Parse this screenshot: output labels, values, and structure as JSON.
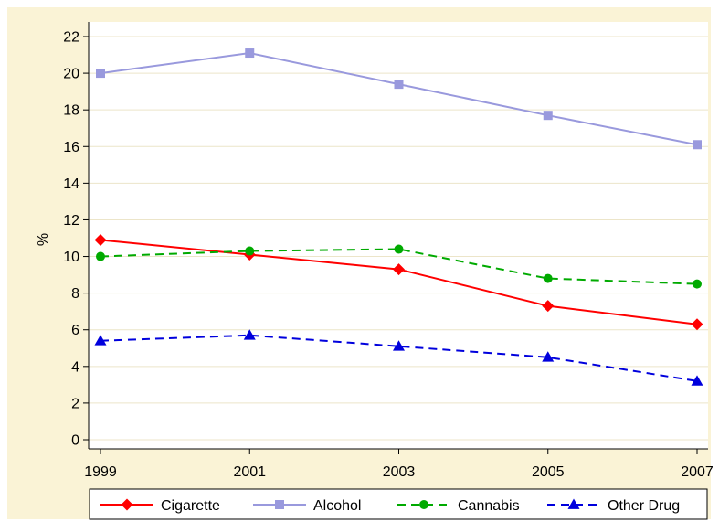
{
  "chart_data": {
    "type": "line",
    "title": "",
    "xlabel": "",
    "ylabel": "%",
    "x": [
      1999,
      2001,
      2003,
      2005,
      2007
    ],
    "xticks": [
      "1999",
      "2001",
      "2003",
      "2005",
      "2007"
    ],
    "yticks": [
      "0",
      "2",
      "4",
      "6",
      "8",
      "10",
      "12",
      "14",
      "16",
      "18",
      "20",
      "22"
    ],
    "ylim": [
      0,
      22
    ],
    "grid": true,
    "legend_position": "bottom",
    "colors": {
      "background_outer": "#faf3d6",
      "plot_background": "#ffffff",
      "grid": "#ece5c9"
    },
    "series": [
      {
        "name": "Cigarette",
        "values": [
          10.9,
          10.1,
          9.3,
          7.3,
          6.3
        ],
        "color": "#ff0000",
        "marker": "diamond",
        "dash": "solid"
      },
      {
        "name": "Alcohol",
        "values": [
          20.0,
          21.1,
          19.4,
          17.7,
          16.1
        ],
        "color": "#9999dd",
        "marker": "square",
        "dash": "solid"
      },
      {
        "name": "Cannabis",
        "values": [
          10.0,
          10.3,
          10.4,
          8.8,
          8.5
        ],
        "color": "#00aa00",
        "marker": "circle",
        "dash": "dashed"
      },
      {
        "name": "Other Drug",
        "values": [
          5.4,
          5.7,
          5.1,
          4.5,
          3.2
        ],
        "color": "#0000dd",
        "marker": "triangle",
        "dash": "dashed"
      }
    ]
  }
}
